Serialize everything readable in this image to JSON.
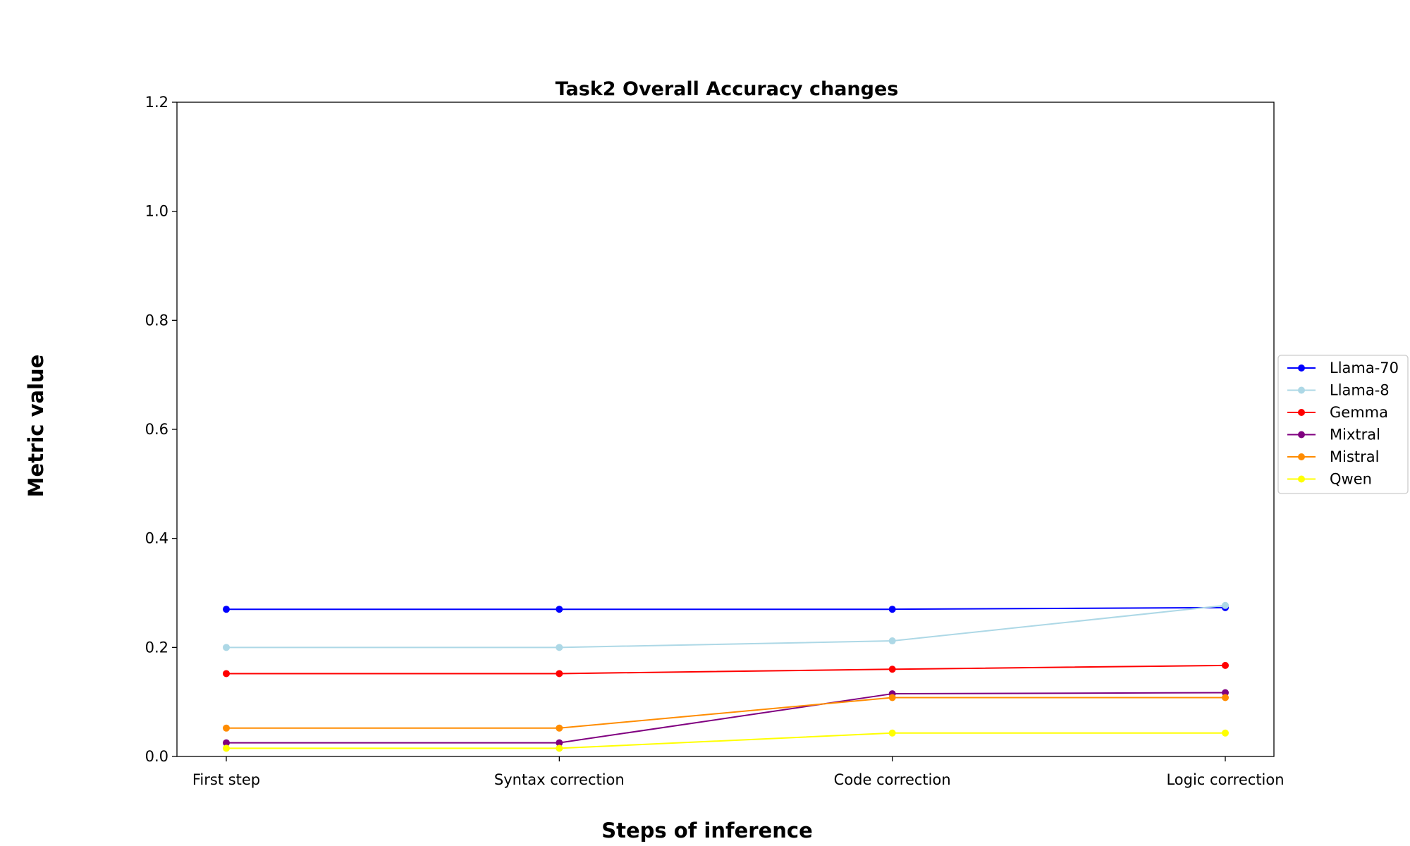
{
  "chart_data": {
    "type": "line",
    "title": "Task2 Overall Accuracy changes",
    "xlabel": "Steps of inference",
    "ylabel": "Metric value",
    "categories": [
      "First step",
      "Syntax correction",
      "Code correction",
      "Logic correction"
    ],
    "ylim": [
      0,
      1.2
    ],
    "yticks": [
      0.0,
      0.2,
      0.4,
      0.6,
      0.8,
      1.0,
      1.2
    ],
    "grid": false,
    "legend_position": "center-right outside",
    "series": [
      {
        "name": "Llama-70",
        "color": "#0000ff",
        "values": [
          0.27,
          0.27,
          0.27,
          0.273
        ]
      },
      {
        "name": "Llama-8",
        "color": "#add8e6",
        "values": [
          0.2,
          0.2,
          0.212,
          0.277
        ]
      },
      {
        "name": "Gemma",
        "color": "#ff0000",
        "values": [
          0.152,
          0.152,
          0.16,
          0.167
        ]
      },
      {
        "name": "Mixtral",
        "color": "#800080",
        "values": [
          0.025,
          0.025,
          0.115,
          0.117
        ]
      },
      {
        "name": "Mistral",
        "color": "#ff8c00",
        "values": [
          0.052,
          0.052,
          0.108,
          0.108
        ]
      },
      {
        "name": "Qwen",
        "color": "#ffff00",
        "values": [
          0.015,
          0.015,
          0.043,
          0.043
        ]
      }
    ]
  }
}
